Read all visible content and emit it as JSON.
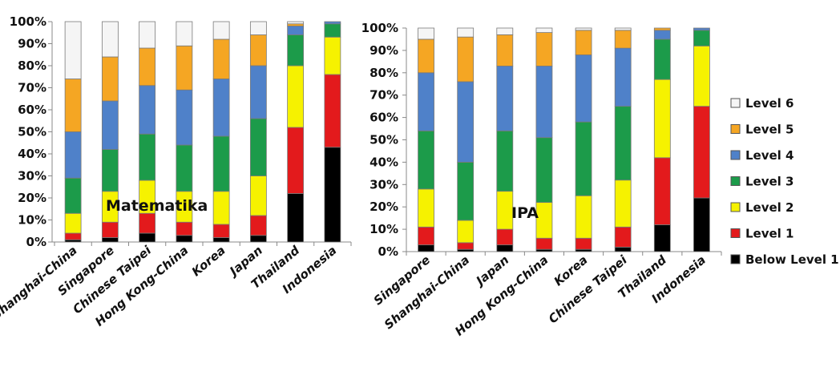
{
  "chart_data": [
    {
      "type": "bar",
      "stacked": true,
      "overlay_label": "Matematika",
      "ylim": [
        0,
        100
      ],
      "yticks": [
        "0%",
        "10%",
        "20%",
        "30%",
        "40%",
        "50%",
        "60%",
        "70%",
        "80%",
        "90%",
        "100%"
      ],
      "categories": [
        "Shanghai-China",
        "Singapore",
        "Chinese Taipei",
        "Hong Kong-China",
        "Korea",
        "Japan",
        "Thailand",
        "Indonesia"
      ],
      "series": [
        {
          "name": "Below Level 1",
          "values": [
            1,
            2,
            4,
            3,
            2,
            3,
            22,
            43
          ]
        },
        {
          "name": "Level 1",
          "values": [
            3,
            7,
            9,
            6,
            6,
            9,
            30,
            33
          ]
        },
        {
          "name": "Level 2",
          "values": [
            9,
            14,
            15,
            14,
            15,
            18,
            28,
            17
          ]
        },
        {
          "name": "Level 3",
          "values": [
            16,
            19,
            21,
            21,
            25,
            26,
            14,
            6
          ]
        },
        {
          "name": "Level 4",
          "values": [
            21,
            22,
            22,
            25,
            26,
            24,
            4,
            1
          ]
        },
        {
          "name": "Level 5",
          "values": [
            24,
            20,
            17,
            20,
            18,
            14,
            1,
            0
          ]
        },
        {
          "name": "Level 6",
          "values": [
            26,
            16,
            12,
            11,
            8,
            6,
            1,
            0
          ]
        }
      ]
    },
    {
      "type": "bar",
      "stacked": true,
      "overlay_label": "IPA",
      "ylim": [
        0,
        100
      ],
      "yticks": [
        "0%",
        "10%",
        "20%",
        "30%",
        "40%",
        "50%",
        "60%",
        "70%",
        "80%",
        "90%",
        "100%"
      ],
      "categories": [
        "Singapore",
        "Shanghai-China",
        "Japan",
        "Hong Kong-China",
        "Korea",
        "Chinese Taipei",
        "Thailand",
        "Indonesia"
      ],
      "series": [
        {
          "name": "Below Level 1",
          "values": [
            3,
            1,
            3,
            1,
            1,
            2,
            12,
            24
          ]
        },
        {
          "name": "Level 1",
          "values": [
            8,
            3,
            7,
            5,
            5,
            9,
            30,
            41
          ]
        },
        {
          "name": "Level 2",
          "values": [
            17,
            10,
            17,
            16,
            19,
            21,
            35,
            27
          ]
        },
        {
          "name": "Level 3",
          "values": [
            26,
            26,
            27,
            29,
            33,
            33,
            18,
            7
          ]
        },
        {
          "name": "Level 4",
          "values": [
            26,
            36,
            29,
            32,
            30,
            26,
            4,
            1
          ]
        },
        {
          "name": "Level 5",
          "values": [
            15,
            20,
            14,
            15,
            11,
            8,
            1,
            0
          ]
        },
        {
          "name": "Level 6",
          "values": [
            5,
            4,
            3,
            2,
            1,
            1,
            0,
            0
          ]
        }
      ]
    }
  ],
  "legend": {
    "placement": "right",
    "items": [
      {
        "label": "Level 6",
        "color": "#f5f5f5"
      },
      {
        "label": "Level 5",
        "color": "#f5a623"
      },
      {
        "label": "Level 4",
        "color": "#4f81c9"
      },
      {
        "label": "Level 3",
        "color": "#1c9b4a"
      },
      {
        "label": "Level 2",
        "color": "#f6f200"
      },
      {
        "label": "Level 1",
        "color": "#e31a1c"
      },
      {
        "label": "Below Level 1",
        "color": "#000000"
      }
    ]
  },
  "colors": {
    "Below Level 1": "#000000",
    "Level 1": "#e31a1c",
    "Level 2": "#f6f200",
    "Level 3": "#1c9b4a",
    "Level 4": "#4f81c9",
    "Level 5": "#f5a623",
    "Level 6": "#f5f5f5"
  }
}
